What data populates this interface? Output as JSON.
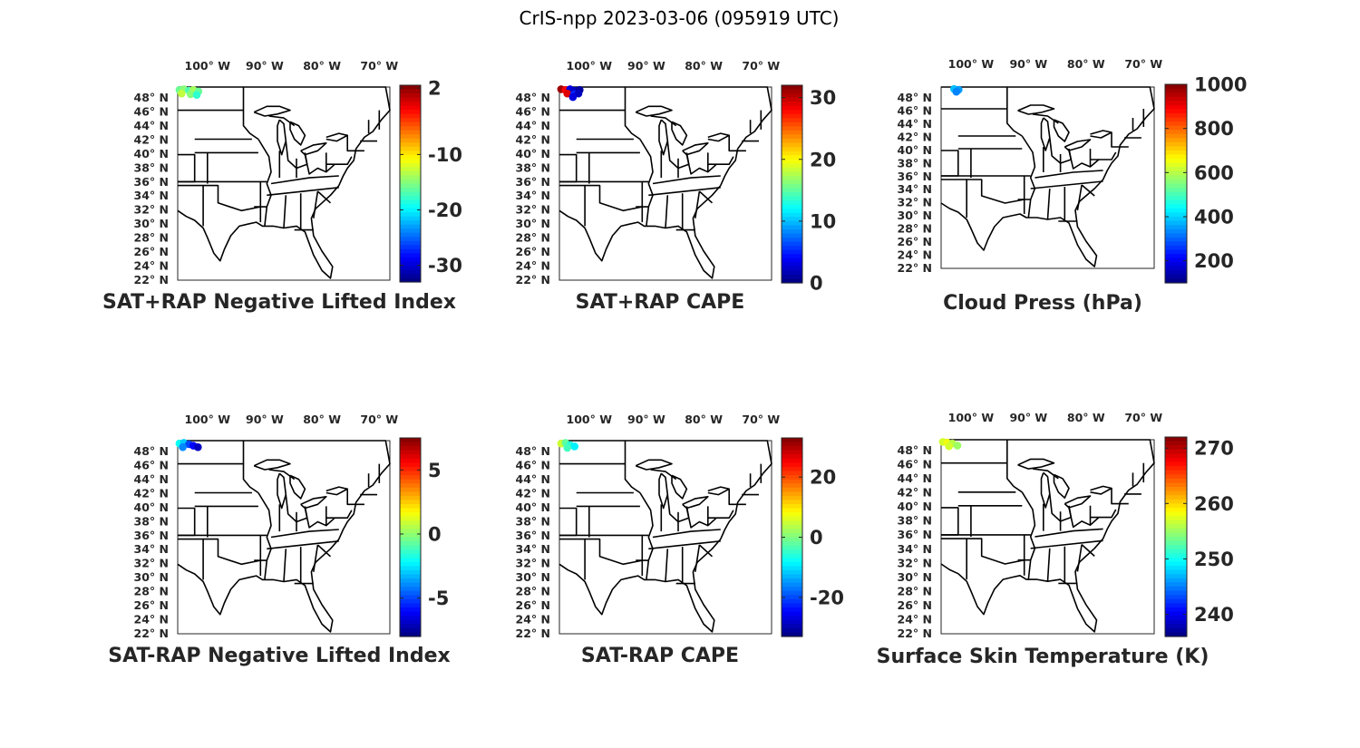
{
  "title": "CrIS-npp 2023-03-06 (095919 UTC)",
  "lon_labels": [
    "100° W",
    "90° W",
    "80° W",
    "70° W"
  ],
  "lat_labels": [
    "48° N",
    "46° N",
    "44° N",
    "42° N",
    "40° N",
    "38° N",
    "36° N",
    "34° N",
    "32° N",
    "30° N",
    "28° N",
    "26° N",
    "24° N",
    "22° N"
  ],
  "colormap": "jet",
  "panels": [
    {
      "title": "SAT+RAP Negative Lifted Index",
      "colorbar": {
        "min": -33,
        "max": 2.5,
        "ticks": [
          2,
          -10,
          -20,
          -30
        ]
      },
      "points": [
        {
          "lon": -104.0,
          "lat": 48.9,
          "value": -16
        },
        {
          "lon": -103.2,
          "lat": 49.0,
          "value": -15
        },
        {
          "lon": -102.3,
          "lat": 48.8,
          "value": -17
        },
        {
          "lon": -101.5,
          "lat": 48.9,
          "value": -14
        },
        {
          "lon": -100.6,
          "lat": 48.7,
          "value": -16
        },
        {
          "lon": -103.6,
          "lat": 48.4,
          "value": -13
        },
        {
          "lon": -102.0,
          "lat": 48.3,
          "value": -15
        },
        {
          "lon": -100.9,
          "lat": 48.2,
          "value": -18
        }
      ]
    },
    {
      "title": "SAT+RAP CAPE",
      "colorbar": {
        "min": 0,
        "max": 32,
        "ticks": [
          30,
          20,
          10,
          0
        ]
      },
      "points": [
        {
          "lon": -104.0,
          "lat": 49.0,
          "value": 31
        },
        {
          "lon": -103.2,
          "lat": 48.9,
          "value": 28
        },
        {
          "lon": -102.4,
          "lat": 49.0,
          "value": 3
        },
        {
          "lon": -101.6,
          "lat": 48.8,
          "value": 2
        },
        {
          "lon": -100.7,
          "lat": 48.9,
          "value": 1
        },
        {
          "lon": -102.9,
          "lat": 48.4,
          "value": 29
        },
        {
          "lon": -101.7,
          "lat": 48.3,
          "value": 5
        },
        {
          "lon": -100.9,
          "lat": 48.4,
          "value": 2
        },
        {
          "lon": -101.9,
          "lat": 47.9,
          "value": 3
        }
      ]
    },
    {
      "title": "Cloud Press (hPa)",
      "colorbar": {
        "min": 100,
        "max": 1000,
        "ticks": [
          1000,
          800,
          600,
          400,
          200
        ]
      },
      "points": [
        {
          "lon": -102.0,
          "lat": 49.0,
          "value": 380
        },
        {
          "lon": -101.2,
          "lat": 48.9,
          "value": 350
        },
        {
          "lon": -101.6,
          "lat": 48.6,
          "value": 330
        }
      ]
    },
    {
      "title": "SAT-RAP Negative Lifted Index",
      "colorbar": {
        "min": -8,
        "max": 7.5,
        "ticks": [
          5,
          0,
          -5
        ]
      },
      "points": [
        {
          "lon": -104.0,
          "lat": 48.9,
          "value": -2
        },
        {
          "lon": -103.2,
          "lat": 49.0,
          "value": -3
        },
        {
          "lon": -102.3,
          "lat": 48.8,
          "value": -5
        },
        {
          "lon": -101.5,
          "lat": 48.6,
          "value": -6
        },
        {
          "lon": -100.7,
          "lat": 48.4,
          "value": -7
        },
        {
          "lon": -103.4,
          "lat": 48.4,
          "value": -4
        }
      ]
    },
    {
      "title": "SAT-RAP CAPE",
      "colorbar": {
        "min": -33,
        "max": 33,
        "ticks": [
          20,
          0,
          -20
        ]
      },
      "points": [
        {
          "lon": -104.0,
          "lat": 48.9,
          "value": 5
        },
        {
          "lon": -103.2,
          "lat": 49.0,
          "value": -2
        },
        {
          "lon": -102.4,
          "lat": 48.7,
          "value": -6
        },
        {
          "lon": -101.6,
          "lat": 48.5,
          "value": -9
        },
        {
          "lon": -102.9,
          "lat": 48.3,
          "value": -4
        }
      ]
    },
    {
      "title": "Surface Skin Temperature (K)",
      "colorbar": {
        "min": 236,
        "max": 272,
        "ticks": [
          270,
          260,
          250,
          240
        ]
      },
      "points": [
        {
          "lon": -104.0,
          "lat": 49.0,
          "value": 257
        },
        {
          "lon": -103.2,
          "lat": 48.9,
          "value": 258
        },
        {
          "lon": -102.3,
          "lat": 48.8,
          "value": 256
        },
        {
          "lon": -101.4,
          "lat": 48.5,
          "value": 255
        },
        {
          "lon": -102.9,
          "lat": 48.4,
          "value": 257
        }
      ]
    }
  ]
}
